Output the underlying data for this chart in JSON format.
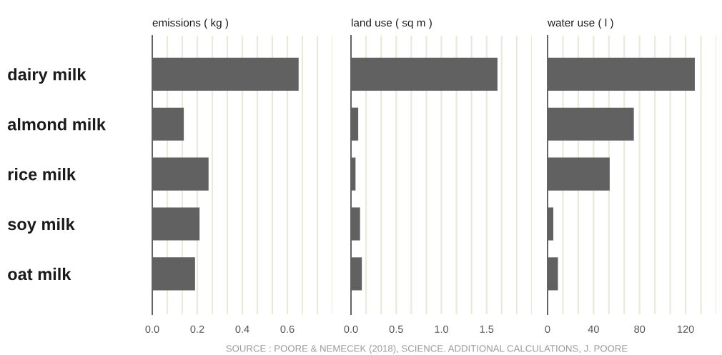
{
  "chart_data": [
    {
      "type": "bar",
      "orientation": "horizontal",
      "title": "emissions ( kg )",
      "categories": [
        "dairy milk",
        "almond milk",
        "rice milk",
        "soy milk",
        "oat milk"
      ],
      "values": [
        0.65,
        0.14,
        0.25,
        0.21,
        0.19
      ],
      "color": "#616161",
      "xlim": [
        0,
        0.8
      ],
      "xticks": [
        {
          "value": 0,
          "label": "0.0"
        },
        {
          "value": 0.0667,
          "label": null
        },
        {
          "value": 0.1333,
          "label": null
        },
        {
          "value": 0.2,
          "label": "0.2"
        },
        {
          "value": 0.2667,
          "label": null
        },
        {
          "value": 0.3333,
          "label": null
        },
        {
          "value": 0.4,
          "label": "0.4"
        },
        {
          "value": 0.4667,
          "label": null
        },
        {
          "value": 0.5333,
          "label": null
        },
        {
          "value": 0.6,
          "label": "0.6"
        },
        {
          "value": 0.6667,
          "label": null
        },
        {
          "value": 0.7333,
          "label": null
        },
        {
          "value": 0.8,
          "label": null
        }
      ],
      "grid": "x",
      "annotations": [
        "SOURCE : POORE & NEMECEK (2018), SCIENCE. ADDITIONAL CALCULATIONS, J. POORE"
      ]
    },
    {
      "type": "bar",
      "orientation": "horizontal",
      "title": "land use ( sq m )",
      "categories": [
        null,
        null,
        null,
        null,
        null
      ],
      "values": [
        1.62,
        0.08,
        0.05,
        0.1,
        0.12
      ],
      "color": "#616161",
      "xlim": [
        0,
        2.0
      ],
      "xticks": [
        {
          "value": 0,
          "label": "0.0"
        },
        {
          "value": 0.1667,
          "label": null
        },
        {
          "value": 0.3333,
          "label": null
        },
        0.5,
        {
          "value": 0.6667,
          "label": null
        },
        {
          "value": 0.8333,
          "label": null
        },
        {
          "value": 1.0,
          "label": "1.0"
        },
        {
          "value": 1.1667,
          "label": null
        },
        {
          "value": 1.3333,
          "label": null
        },
        1.5,
        {
          "value": 1.6667,
          "label": null
        },
        {
          "value": 1.8333,
          "label": null
        },
        {
          "value": 2.0,
          "label": null
        }
      ],
      "grid": "x",
      "tick_labels": "x"
    },
    {
      "type": "bar",
      "orientation": "horizontal",
      "title": "water use ( l )",
      "categories": [
        null,
        null,
        null,
        null,
        null
      ],
      "values": [
        128,
        75,
        54,
        5,
        9
      ],
      "color": "#616161",
      "xlim": [
        0,
        146.67
      ],
      "xticks": [
        0,
        {
          "value": 13.33,
          "label": null
        },
        {
          "value": 26.67,
          "label": null
        },
        40,
        {
          "value": 53.33,
          "label": null
        },
        {
          "value": 66.67,
          "label": null
        },
        80,
        {
          "value": 93.33,
          "label": null
        },
        {
          "value": 106.67,
          "label": null
        },
        120,
        {
          "value": 133.33,
          "label": null
        },
        {
          "value": 146.67,
          "label": null
        }
      ],
      "grid": "x",
      "tick_labels": "x"
    }
  ]
}
